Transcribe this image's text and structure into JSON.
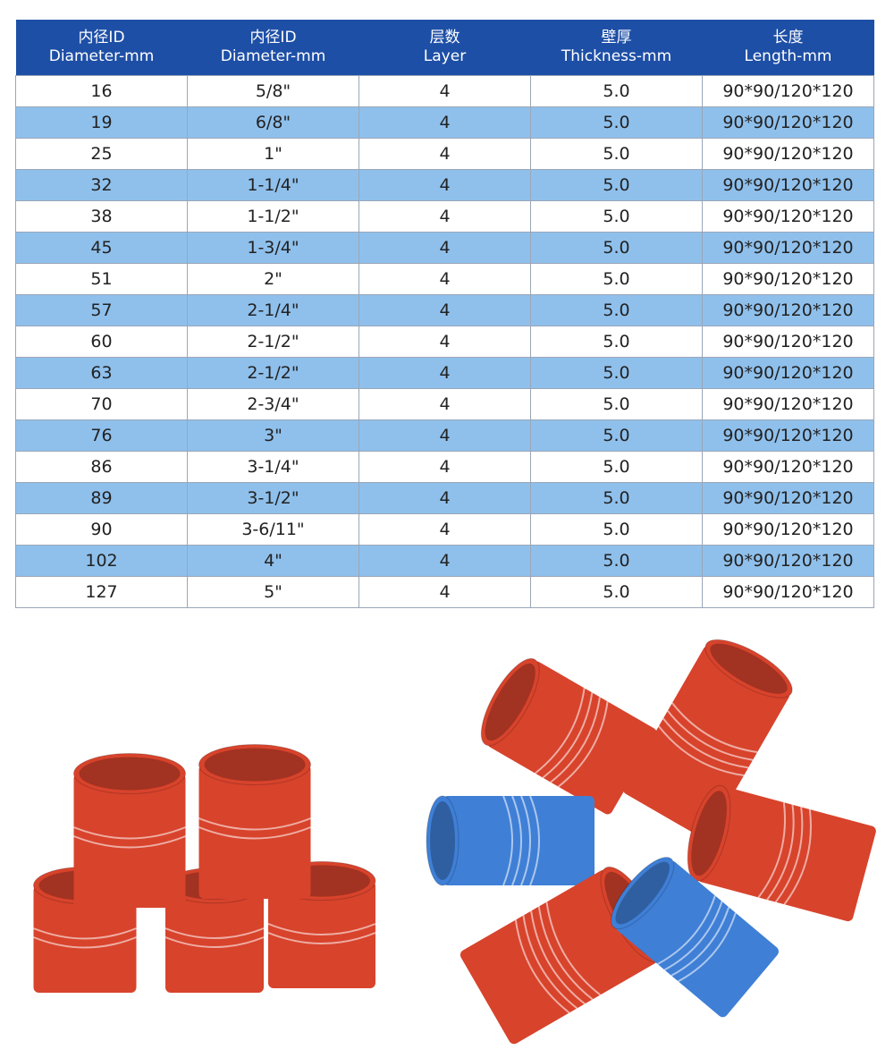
{
  "table": {
    "headers": [
      [
        "内径ID",
        "Diameter-mm"
      ],
      [
        "内径ID",
        "Diameter-mm"
      ],
      [
        "层数",
        "Layer"
      ],
      [
        "壁厚",
        "Thickness-mm"
      ],
      [
        "长度",
        "Length-mm"
      ]
    ],
    "rows": [
      [
        "16",
        "5/8\"",
        "4",
        "5.0",
        "90*90/120*120"
      ],
      [
        "19",
        "6/8\"",
        "4",
        "5.0",
        "90*90/120*120"
      ],
      [
        "25",
        "1\"",
        "4",
        "5.0",
        "90*90/120*120"
      ],
      [
        "32",
        "1-1/4\"",
        "4",
        "5.0",
        "90*90/120*120"
      ],
      [
        "38",
        "1-1/2\"",
        "4",
        "5.0",
        "90*90/120*120"
      ],
      [
        "45",
        "1-3/4\"",
        "4",
        "5.0",
        "90*90/120*120"
      ],
      [
        "51",
        "2\"",
        "4",
        "5.0",
        "90*90/120*120"
      ],
      [
        "57",
        "2-1/4\"",
        "4",
        "5.0",
        "90*90/120*120"
      ],
      [
        "60",
        "2-1/2\"",
        "4",
        "5.0",
        "90*90/120*120"
      ],
      [
        "63",
        "2-1/2\"",
        "4",
        "5.0",
        "90*90/120*120"
      ],
      [
        "70",
        "2-3/4\"",
        "4",
        "5.0",
        "90*90/120*120"
      ],
      [
        "76",
        "3\"",
        "4",
        "5.0",
        "90*90/120*120"
      ],
      [
        "86",
        "3-1/4\"",
        "4",
        "5.0",
        "90*90/120*120"
      ],
      [
        "89",
        "3-1/2\"",
        "4",
        "5.0",
        "90*90/120*120"
      ],
      [
        "90",
        "3-6/11\"",
        "4",
        "5.0",
        "90*90/120*120"
      ],
      [
        "102",
        "4\"",
        "4",
        "5.0",
        "90*90/120*120"
      ],
      [
        "127",
        "5\"",
        "4",
        "5.0",
        "90*90/120*120"
      ]
    ]
  },
  "colors": {
    "header": "#1e4fa6",
    "alt_row": "#8fc0ec",
    "red_hose": "#d8432c",
    "blue_hose": "#3f7fd6"
  }
}
